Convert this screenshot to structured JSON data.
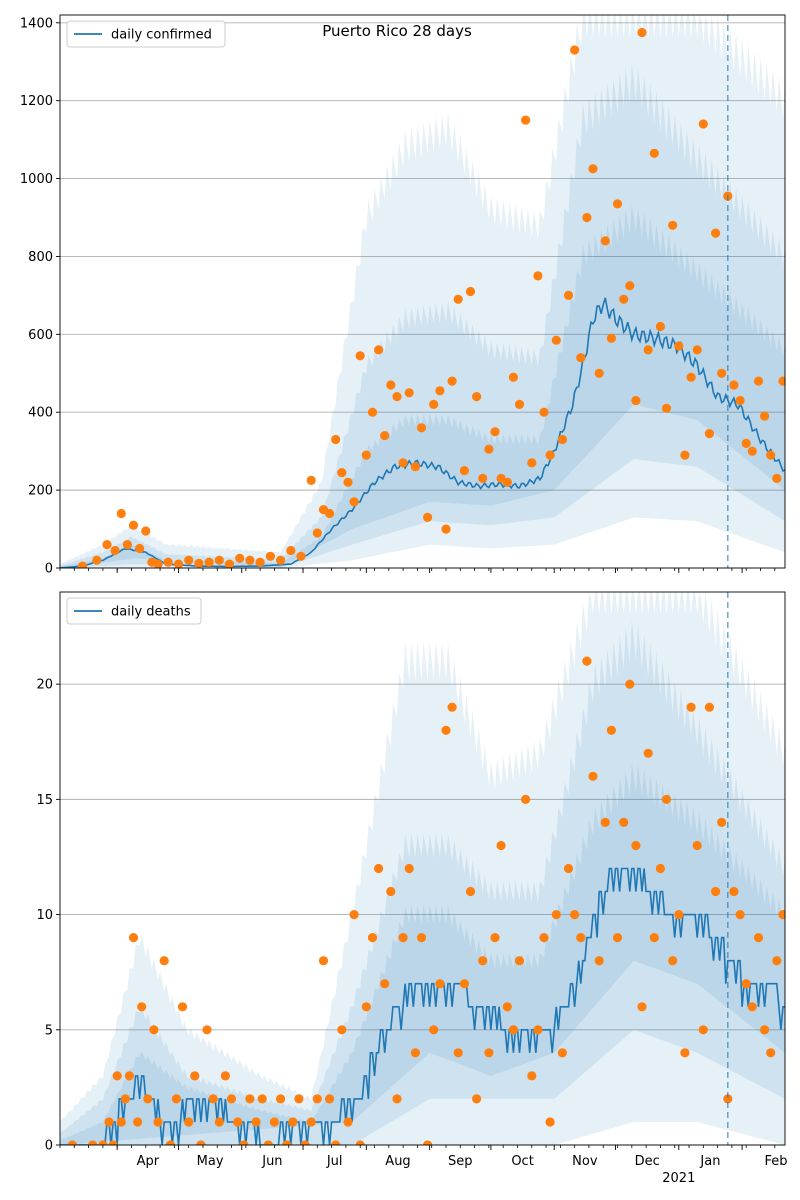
{
  "figure": {
    "title": "Puerto Rico 28 days",
    "colors": {
      "line": "#1f77b4",
      "points": "#ff7f0e",
      "band": "#1f77b4",
      "grid": "#b0b0b0",
      "forecast_marker": "#1f77b4"
    },
    "x_axis": {
      "month_ticks": [
        "Apr",
        "May",
        "Jun",
        "Jul",
        "Aug",
        "Sep",
        "Oct",
        "Nov",
        "Dec",
        "Jan",
        "Feb"
      ],
      "year_label": "2021",
      "start_date": "2020-03-04",
      "end_date": "2021-02-22",
      "forecast_date": "2021-01-25"
    }
  },
  "chart_data": [
    {
      "type": "line",
      "legend": "daily confirmed",
      "legend_position": "top-left",
      "grid": "horizontal",
      "ylim": [
        0,
        1420
      ],
      "yticks": [
        0,
        200,
        400,
        600,
        800,
        1000,
        1200,
        1400
      ],
      "line": {
        "name": "daily confirmed",
        "x": [
          "2020-03-04",
          "2020-03-15",
          "2020-03-25",
          "2020-04-05",
          "2020-04-15",
          "2020-04-25",
          "2020-05-10",
          "2020-05-25",
          "2020-06-10",
          "2020-06-25",
          "2020-07-05",
          "2020-07-15",
          "2020-07-25",
          "2020-08-05",
          "2020-08-15",
          "2020-08-25",
          "2020-09-05",
          "2020-09-15",
          "2020-09-25",
          "2020-10-05",
          "2020-10-15",
          "2020-10-25",
          "2020-11-01",
          "2020-11-10",
          "2020-11-15",
          "2020-11-20",
          "2020-11-25",
          "2020-12-01",
          "2020-12-10",
          "2020-12-20",
          "2020-12-31",
          "2021-01-10",
          "2021-01-20",
          "2021-01-30",
          "2021-02-10",
          "2021-02-22"
        ],
        "y": [
          0,
          5,
          20,
          50,
          40,
          10,
          5,
          4,
          5,
          10,
          40,
          100,
          150,
          220,
          260,
          270,
          260,
          220,
          210,
          215,
          210,
          230,
          300,
          420,
          520,
          640,
          680,
          640,
          600,
          590,
          570,
          520,
          440,
          420,
          330,
          250
        ]
      },
      "bands_upper": [
        {
          "x": [
            "2020-03-04",
            "2020-03-25",
            "2020-04-08",
            "2020-04-25",
            "2020-06-20",
            "2020-07-10",
            "2020-08-01",
            "2020-08-20",
            "2020-09-10",
            "2020-10-01",
            "2020-10-25",
            "2020-11-15",
            "2020-12-10",
            "2021-01-10",
            "2021-02-22"
          ],
          "y": [
            10,
            60,
            110,
            60,
            40,
            220,
            900,
            1080,
            1130,
            920,
            880,
            1420,
            1420,
            1420,
            1200
          ]
        },
        {
          "x": [
            "2020-03-04",
            "2020-03-25",
            "2020-04-08",
            "2020-04-25",
            "2020-06-20",
            "2020-07-10",
            "2020-08-01",
            "2020-08-20",
            "2020-09-10",
            "2020-10-01",
            "2020-10-25",
            "2020-11-15",
            "2020-12-10",
            "2021-01-10",
            "2021-02-22"
          ],
          "y": [
            6,
            40,
            80,
            35,
            22,
            130,
            520,
            640,
            660,
            560,
            540,
            1150,
            1250,
            1050,
            800
          ]
        },
        {
          "x": [
            "2020-03-04",
            "2020-03-25",
            "2020-04-08",
            "2020-04-25",
            "2020-06-20",
            "2020-07-10",
            "2020-08-01",
            "2020-08-20",
            "2020-09-10",
            "2020-10-01",
            "2020-10-25",
            "2020-11-15",
            "2020-12-10",
            "2021-01-10",
            "2021-02-22"
          ],
          "y": [
            3,
            25,
            60,
            20,
            12,
            80,
            300,
            380,
            380,
            330,
            330,
            800,
            900,
            760,
            560
          ]
        }
      ],
      "bands_lower": [
        {
          "x": [
            "2020-03-04",
            "2020-04-10",
            "2020-06-20",
            "2020-07-25",
            "2020-09-01",
            "2020-10-01",
            "2020-11-01",
            "2020-12-10",
            "2021-01-10",
            "2021-02-22"
          ],
          "y": [
            0,
            0,
            0,
            20,
            60,
            50,
            60,
            130,
            120,
            40
          ]
        },
        {
          "x": [
            "2020-03-04",
            "2020-04-10",
            "2020-06-20",
            "2020-07-25",
            "2020-09-01",
            "2020-10-01",
            "2020-11-01",
            "2020-12-10",
            "2021-01-10",
            "2021-02-22"
          ],
          "y": [
            0,
            10,
            0,
            60,
            120,
            110,
            130,
            280,
            260,
            120
          ]
        },
        {
          "x": [
            "2020-03-04",
            "2020-04-10",
            "2020-06-20",
            "2020-07-25",
            "2020-09-01",
            "2020-10-01",
            "2020-11-01",
            "2020-12-10",
            "2021-01-10",
            "2021-02-22"
          ],
          "y": [
            0,
            25,
            2,
            100,
            170,
            160,
            200,
            420,
            380,
            200
          ]
        }
      ],
      "points": {
        "name": "observed daily confirmed",
        "x": [
          "2020-03-15",
          "2020-03-22",
          "2020-03-27",
          "2020-03-31",
          "2020-04-03",
          "2020-04-06",
          "2020-04-09",
          "2020-04-12",
          "2020-04-15",
          "2020-04-18",
          "2020-04-21",
          "2020-04-26",
          "2020-05-01",
          "2020-05-06",
          "2020-05-11",
          "2020-05-16",
          "2020-05-21",
          "2020-05-26",
          "2020-05-31",
          "2020-06-05",
          "2020-06-10",
          "2020-06-15",
          "2020-06-20",
          "2020-06-25",
          "2020-06-30",
          "2020-07-05",
          "2020-07-08",
          "2020-07-11",
          "2020-07-14",
          "2020-07-17",
          "2020-07-20",
          "2020-07-23",
          "2020-07-26",
          "2020-07-29",
          "2020-08-01",
          "2020-08-04",
          "2020-08-07",
          "2020-08-10",
          "2020-08-13",
          "2020-08-16",
          "2020-08-19",
          "2020-08-22",
          "2020-08-25",
          "2020-08-28",
          "2020-08-31",
          "2020-09-03",
          "2020-09-06",
          "2020-09-09",
          "2020-09-12",
          "2020-09-15",
          "2020-09-18",
          "2020-09-21",
          "2020-09-24",
          "2020-09-27",
          "2020-09-30",
          "2020-10-03",
          "2020-10-06",
          "2020-10-09",
          "2020-10-12",
          "2020-10-15",
          "2020-10-18",
          "2020-10-21",
          "2020-10-24",
          "2020-10-27",
          "2020-10-30",
          "2020-11-02",
          "2020-11-05",
          "2020-11-08",
          "2020-11-11",
          "2020-11-14",
          "2020-11-17",
          "2020-11-20",
          "2020-11-23",
          "2020-11-26",
          "2020-11-29",
          "2020-12-02",
          "2020-12-05",
          "2020-12-08",
          "2020-12-11",
          "2020-12-14",
          "2020-12-17",
          "2020-12-20",
          "2020-12-23",
          "2020-12-26",
          "2020-12-29",
          "2021-01-01",
          "2021-01-04",
          "2021-01-07",
          "2021-01-10",
          "2021-01-13",
          "2021-01-16",
          "2021-01-19",
          "2021-01-22",
          "2021-01-25",
          "2021-01-28",
          "2021-01-31",
          "2021-02-03",
          "2021-02-06",
          "2021-02-09",
          "2021-02-12",
          "2021-02-15",
          "2021-02-18",
          "2021-02-21"
        ],
        "y": [
          5,
          20,
          60,
          45,
          140,
          60,
          110,
          50,
          95,
          15,
          10,
          15,
          10,
          20,
          12,
          15,
          20,
          10,
          25,
          20,
          15,
          30,
          20,
          45,
          30,
          225,
          90,
          150,
          140,
          330,
          245,
          220,
          170,
          545,
          290,
          400,
          560,
          340,
          470,
          440,
          270,
          450,
          260,
          360,
          130,
          420,
          455,
          100,
          480,
          690,
          250,
          710,
          440,
          230,
          305,
          350,
          230,
          220,
          490,
          420,
          1150,
          270,
          750,
          400,
          290,
          585,
          330,
          700,
          1330,
          540,
          900,
          1025,
          500,
          840,
          590,
          935,
          690,
          725,
          430,
          1375,
          560,
          1065,
          620,
          410,
          880,
          570,
          290,
          490,
          560,
          1140,
          345,
          860,
          500,
          955,
          470,
          430,
          320,
          300,
          480,
          390,
          290,
          230,
          480
        ]
      }
    },
    {
      "type": "line",
      "legend": "daily deaths",
      "legend_position": "top-left",
      "grid": "horizontal",
      "ylim": [
        0,
        24
      ],
      "yticks": [
        0,
        5,
        10,
        15,
        20
      ],
      "line": {
        "name": "daily deaths",
        "x": [
          "2020-03-04",
          "2020-03-25",
          "2020-03-29",
          "2020-04-05",
          "2020-04-12",
          "2020-04-18",
          "2020-04-25",
          "2020-05-10",
          "2020-05-20",
          "2020-05-28",
          "2020-06-04",
          "2020-06-15",
          "2020-06-25",
          "2020-07-10",
          "2020-07-28",
          "2020-08-05",
          "2020-08-15",
          "2020-08-25",
          "2020-09-05",
          "2020-09-15",
          "2020-09-25",
          "2020-10-01",
          "2020-10-10",
          "2020-10-20",
          "2020-10-30",
          "2020-11-05",
          "2020-11-10",
          "2020-11-15",
          "2020-11-20",
          "2020-11-25",
          "2020-12-01",
          "2020-12-10",
          "2020-12-20",
          "2020-12-31",
          "2021-01-10",
          "2021-01-20",
          "2021-01-27",
          "2021-02-05",
          "2021-02-15",
          "2021-02-22"
        ],
        "y": [
          0,
          0,
          1,
          2,
          3,
          2,
          1,
          2,
          2,
          1,
          1,
          0,
          1,
          1,
          2,
          4,
          6,
          7,
          7,
          7,
          6,
          6,
          5,
          5,
          5,
          6,
          7,
          8,
          10,
          11,
          12,
          12,
          11,
          10,
          10,
          9,
          8,
          7,
          7,
          6
        ]
      },
      "bands_upper": [
        {
          "x": [
            "2020-03-04",
            "2020-03-25",
            "2020-04-12",
            "2020-05-05",
            "2020-06-10",
            "2020-07-05",
            "2020-07-25",
            "2020-08-20",
            "2020-09-10",
            "2020-10-01",
            "2020-10-25",
            "2020-11-20",
            "2020-12-10",
            "2021-01-10",
            "2021-02-22"
          ],
          "y": [
            1,
            3,
            9,
            5,
            3,
            2,
            10,
            21,
            21,
            16,
            17,
            24,
            24,
            24,
            17
          ]
        },
        {
          "x": [
            "2020-03-04",
            "2020-03-25",
            "2020-04-12",
            "2020-05-05",
            "2020-06-10",
            "2020-07-05",
            "2020-07-25",
            "2020-08-20",
            "2020-09-10",
            "2020-10-01",
            "2020-10-25",
            "2020-11-20",
            "2020-12-10",
            "2021-01-10",
            "2021-02-22"
          ],
          "y": [
            0.5,
            2,
            6,
            3,
            2,
            1.5,
            6,
            13,
            13,
            11,
            11,
            20,
            22,
            18,
            12
          ]
        },
        {
          "x": [
            "2020-03-04",
            "2020-03-25",
            "2020-04-12",
            "2020-05-05",
            "2020-06-10",
            "2020-07-05",
            "2020-07-25",
            "2020-08-20",
            "2020-09-10",
            "2020-10-01",
            "2020-10-25",
            "2020-11-20",
            "2020-12-10",
            "2021-01-10",
            "2021-02-22"
          ],
          "y": [
            0.2,
            1,
            4,
            2.5,
            1.5,
            1,
            4,
            10,
            10,
            8,
            8,
            14,
            16,
            14,
            10
          ]
        }
      ],
      "bands_lower": [
        {
          "x": [
            "2020-03-04",
            "2020-07-25",
            "2020-09-01",
            "2020-10-01",
            "2020-11-01",
            "2020-12-10",
            "2021-01-10",
            "2021-02-22"
          ],
          "y": [
            0,
            0,
            0,
            0,
            0,
            1,
            1,
            0
          ]
        },
        {
          "x": [
            "2020-03-04",
            "2020-07-25",
            "2020-09-01",
            "2020-10-01",
            "2020-11-01",
            "2020-12-10",
            "2021-01-10",
            "2021-02-22"
          ],
          "y": [
            0,
            0,
            2,
            2,
            2,
            5,
            4,
            2
          ]
        },
        {
          "x": [
            "2020-03-04",
            "2020-07-25",
            "2020-09-01",
            "2020-10-01",
            "2020-11-01",
            "2020-12-10",
            "2021-01-10",
            "2021-02-22"
          ],
          "y": [
            0,
            1,
            4,
            3,
            4,
            8,
            7,
            4
          ]
        }
      ],
      "points": {
        "name": "observed daily deaths",
        "x": [
          "2020-03-10",
          "2020-03-20",
          "2020-03-25",
          "2020-03-28",
          "2020-03-30",
          "2020-04-01",
          "2020-04-03",
          "2020-04-05",
          "2020-04-07",
          "2020-04-09",
          "2020-04-11",
          "2020-04-13",
          "2020-04-16",
          "2020-04-19",
          "2020-04-21",
          "2020-04-24",
          "2020-04-27",
          "2020-04-30",
          "2020-05-03",
          "2020-05-06",
          "2020-05-09",
          "2020-05-12",
          "2020-05-15",
          "2020-05-18",
          "2020-05-21",
          "2020-05-24",
          "2020-05-27",
          "2020-05-30",
          "2020-06-02",
          "2020-06-05",
          "2020-06-08",
          "2020-06-11",
          "2020-06-14",
          "2020-06-17",
          "2020-06-20",
          "2020-06-23",
          "2020-06-26",
          "2020-06-29",
          "2020-07-02",
          "2020-07-05",
          "2020-07-08",
          "2020-07-11",
          "2020-07-14",
          "2020-07-17",
          "2020-07-20",
          "2020-07-23",
          "2020-07-26",
          "2020-07-29",
          "2020-08-01",
          "2020-08-04",
          "2020-08-07",
          "2020-08-10",
          "2020-08-13",
          "2020-08-16",
          "2020-08-19",
          "2020-08-22",
          "2020-08-25",
          "2020-08-28",
          "2020-08-31",
          "2020-09-03",
          "2020-09-06",
          "2020-09-09",
          "2020-09-12",
          "2020-09-15",
          "2020-09-18",
          "2020-09-21",
          "2020-09-24",
          "2020-09-27",
          "2020-09-30",
          "2020-10-03",
          "2020-10-06",
          "2020-10-09",
          "2020-10-12",
          "2020-10-15",
          "2020-10-18",
          "2020-10-21",
          "2020-10-24",
          "2020-10-27",
          "2020-10-30",
          "2020-11-02",
          "2020-11-05",
          "2020-11-08",
          "2020-11-11",
          "2020-11-14",
          "2020-11-17",
          "2020-11-20",
          "2020-11-23",
          "2020-11-26",
          "2020-11-29",
          "2020-12-02",
          "2020-12-05",
          "2020-12-08",
          "2020-12-11",
          "2020-12-14",
          "2020-12-17",
          "2020-12-20",
          "2020-12-23",
          "2020-12-26",
          "2020-12-29",
          "2021-01-01",
          "2021-01-04",
          "2021-01-07",
          "2021-01-10",
          "2021-01-13",
          "2021-01-16",
          "2021-01-19",
          "2021-01-22",
          "2021-01-25",
          "2021-01-28",
          "2021-01-31",
          "2021-02-03",
          "2021-02-06",
          "2021-02-09",
          "2021-02-12",
          "2021-02-15",
          "2021-02-18",
          "2021-02-21"
        ],
        "y": [
          0,
          0,
          0,
          1,
          0,
          3,
          1,
          2,
          3,
          9,
          1,
          6,
          2,
          5,
          1,
          8,
          0,
          2,
          6,
          1,
          3,
          0,
          5,
          2,
          1,
          3,
          2,
          1,
          0,
          2,
          1,
          2,
          0,
          1,
          2,
          0,
          1,
          2,
          0,
          1,
          2,
          8,
          2,
          0,
          5,
          1,
          10,
          0,
          6,
          9,
          12,
          7,
          11,
          2,
          9,
          12,
          4,
          9,
          0,
          5,
          7,
          18,
          19,
          4,
          7,
          11,
          2,
          8,
          4,
          9,
          13,
          6,
          5,
          8,
          15,
          3,
          5,
          9,
          1,
          10,
          4,
          12,
          10,
          9,
          21,
          16,
          8,
          14,
          18,
          9,
          14,
          20,
          13,
          6,
          17,
          9,
          12,
          15,
          8,
          10,
          4,
          19,
          13,
          5,
          19,
          11,
          14,
          2,
          11,
          10,
          7,
          6,
          9,
          5,
          4,
          8,
          10
        ]
      }
    }
  ]
}
